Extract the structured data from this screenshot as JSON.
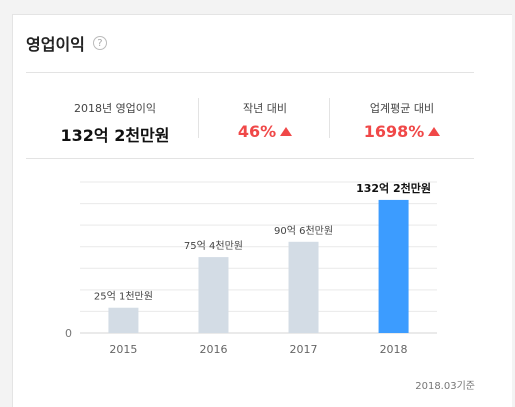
{
  "header": {
    "title": "영업이익",
    "help_icon": "question-circle-icon"
  },
  "stats": [
    {
      "label": "2018년 영업이익",
      "value": "132억 2천만원",
      "arrow": false
    },
    {
      "label": "작년 대비",
      "value": "46%",
      "arrow": true
    },
    {
      "label": "업계평균 대비",
      "value": "1698%",
      "arrow": true
    }
  ],
  "colors": {
    "up": "#f04848",
    "bar_past": "#d3dce5",
    "bar_current": "#3c9cff",
    "grid": "#e9e9e9"
  },
  "chart_data": {
    "type": "bar",
    "categories": [
      "2015",
      "2016",
      "2017",
      "2018"
    ],
    "values": [
      25.1,
      75.4,
      90.6,
      132.2
    ],
    "data_labels": [
      "25억 1천만원",
      "75억 4천만원",
      "90억 6천만원",
      "132억 2천만원"
    ],
    "highlight_index": 3,
    "y_tick_labels": [
      "0"
    ],
    "ylim": [
      0,
      150
    ],
    "grid": true
  },
  "footnote": "2018.03기준"
}
